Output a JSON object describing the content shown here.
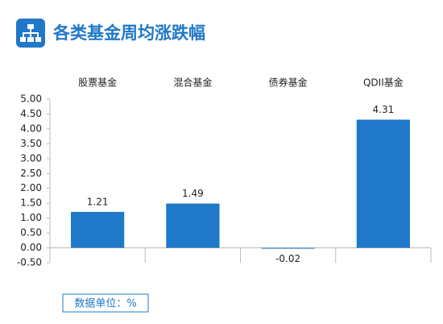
{
  "chart_data": {
    "type": "bar",
    "title": "各类基金周均涨跌幅",
    "categories": [
      "股票基金",
      "混合基金",
      "债券基金",
      "QDII基金"
    ],
    "values": [
      1.21,
      1.49,
      -0.02,
      4.31
    ],
    "color": "#1f78c8",
    "ylim": [
      -0.5,
      5.0
    ],
    "yticks": [
      {
        "value": -0.5,
        "label": "-0.50"
      },
      {
        "value": 0,
        "label": "0.00"
      },
      {
        "value": 0.5,
        "label": "0.50"
      },
      {
        "value": 1.0,
        "label": "1.00"
      },
      {
        "value": 1.5,
        "label": "1.50"
      },
      {
        "value": 2.0,
        "label": "2.00"
      },
      {
        "value": 2.5,
        "label": "2.50"
      },
      {
        "value": 3.0,
        "label": "3.00"
      },
      {
        "value": 3.5,
        "label": "3.50"
      },
      {
        "value": 4.0,
        "label": "4.00"
      },
      {
        "value": 4.5,
        "label": "4.50"
      },
      {
        "value": 5.0,
        "label": "5.00"
      }
    ],
    "note": "数据单位：%"
  }
}
